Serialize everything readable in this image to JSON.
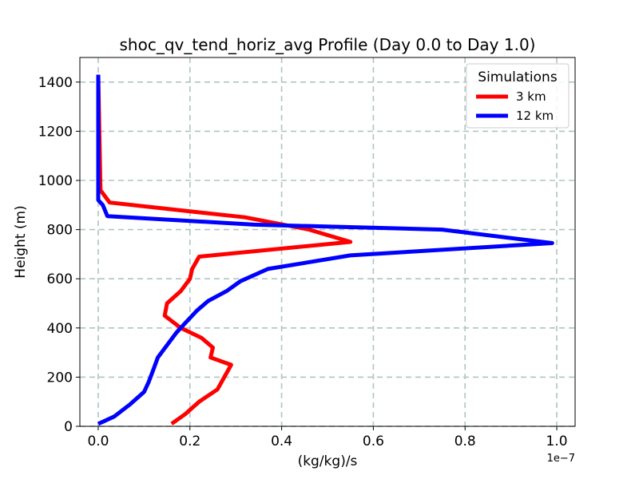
{
  "chart_data": {
    "type": "line",
    "title": "shoc_qv_tend_horiz_avg Profile (Day 0.0 to Day 1.0)",
    "xlabel": "(kg/kg)/s",
    "ylabel": "Height (m)",
    "x_offset_label": "1e−7",
    "x_scale": 1e-07,
    "xlim": [
      -0.04,
      1.04
    ],
    "ylim": [
      0,
      1500
    ],
    "xticks": [
      0.0,
      0.2,
      0.4,
      0.6,
      0.8,
      1.0
    ],
    "xtick_labels": [
      "0.0",
      "0.2",
      "0.4",
      "0.6",
      "0.8",
      "1.0"
    ],
    "yticks": [
      0,
      200,
      400,
      600,
      800,
      1000,
      1200,
      1400
    ],
    "ytick_labels": [
      "0",
      "200",
      "400",
      "600",
      "800",
      "1000",
      "1200",
      "1400"
    ],
    "grid": true,
    "legend": {
      "title": "Simulations",
      "placement": "top-right",
      "entries": [
        "3 km",
        "12 km"
      ]
    },
    "series": [
      {
        "name": "3 km",
        "color": "#ff0000",
        "x": [
          0.16,
          0.19,
          0.22,
          0.26,
          0.275,
          0.29,
          0.245,
          0.25,
          0.225,
          0.18,
          0.145,
          0.15,
          0.18,
          0.2,
          0.205,
          0.22,
          0.55,
          0.46,
          0.32,
          0.22,
          0.025,
          0.005,
          0.0
        ],
        "y": [
          10,
          50,
          100,
          150,
          200,
          250,
          280,
          320,
          360,
          400,
          450,
          500,
          550,
          600,
          640,
          690,
          750,
          800,
          850,
          870,
          910,
          960,
          1430
        ]
      },
      {
        "name": "12 km",
        "color": "#0000ff",
        "x": [
          0.0,
          0.035,
          0.07,
          0.1,
          0.11,
          0.12,
          0.13,
          0.15,
          0.17,
          0.19,
          0.215,
          0.24,
          0.28,
          0.31,
          0.37,
          0.55,
          0.99,
          0.75,
          0.34,
          0.02,
          0.01,
          0.0,
          0.0
        ],
        "y": [
          10,
          40,
          90,
          140,
          180,
          230,
          280,
          330,
          380,
          420,
          470,
          510,
          550,
          590,
          640,
          695,
          745,
          800,
          820,
          855,
          900,
          920,
          1430
        ]
      }
    ]
  }
}
